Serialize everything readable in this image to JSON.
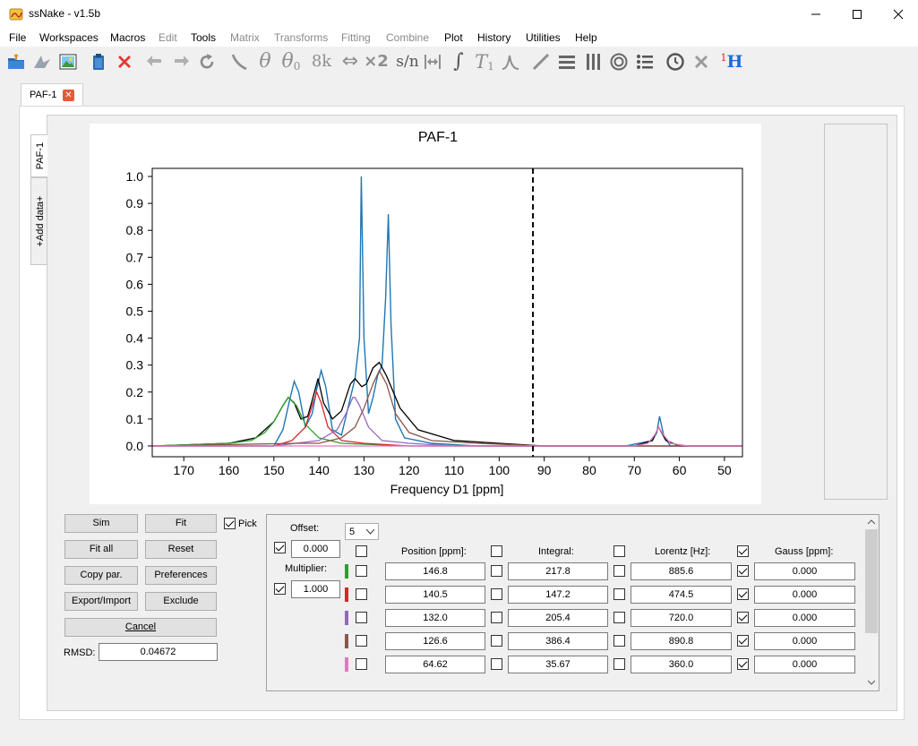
{
  "window": {
    "title": "ssNake - v1.5b",
    "minimize_label": "—",
    "maximize_label": "☐",
    "close_label": "✕"
  },
  "menu": [
    {
      "label": "File",
      "enabled": true
    },
    {
      "label": "Workspaces",
      "enabled": true
    },
    {
      "label": "Macros",
      "enabled": true
    },
    {
      "label": "Edit",
      "enabled": false
    },
    {
      "label": "Tools",
      "enabled": true
    },
    {
      "label": "Matrix",
      "enabled": false
    },
    {
      "label": "Transforms",
      "enabled": false
    },
    {
      "label": "Fitting",
      "enabled": false
    },
    {
      "label": "Combine",
      "enabled": false
    },
    {
      "label": "Plot",
      "enabled": true
    },
    {
      "label": "History",
      "enabled": true
    },
    {
      "label": "Utilities",
      "enabled": true
    },
    {
      "label": "Help",
      "enabled": true
    }
  ],
  "toolbar": {
    "icons": [
      "open-folder-icon",
      "matrix-icon",
      "image-icon",
      "clipboard-icon",
      "delete-icon",
      "undo-icon",
      "redo-icon",
      "reload-icon",
      "phase-line-icon",
      "theta-icon",
      "theta-zero-icon",
      "eightk-icon",
      "swap-arrows-icon",
      "times-two-icon",
      "sn-icon",
      "width-icon",
      "integral-icon",
      "t1-icon",
      "lambda-icon",
      "diagonal-icon",
      "rows-icon",
      "columns-icon",
      "circles-icon",
      "list-icon",
      "clock-icon",
      "x-gray-icon",
      "proton-icon"
    ],
    "text_labels": {
      "theta": "θ",
      "theta0": "θ",
      "theta0_sub": "0",
      "eightk": "8k",
      "swap": "⇔",
      "times2": "×2",
      "sn": "s/n",
      "integral": "∫",
      "t1": "T",
      "t1_sub": "1",
      "lambda": "⋏",
      "proton_sup": "1",
      "proton": "H"
    }
  },
  "tabs": [
    {
      "label": "PAF-1",
      "close": "✕"
    }
  ],
  "side_tabs": {
    "active": "PAF-1",
    "add": "+Add data+"
  },
  "chart_data": {
    "type": "line",
    "title": "PAF-1",
    "xlabel": "Frequency D1 [ppm]",
    "ylabel": "",
    "xlim": [
      177,
      46
    ],
    "ylim": [
      -0.04,
      1.03
    ],
    "x_ticks": [
      170,
      160,
      150,
      140,
      130,
      120,
      110,
      100,
      90,
      80,
      70,
      60,
      50
    ],
    "y_ticks": [
      0.0,
      0.1,
      0.2,
      0.3,
      0.4,
      0.5,
      0.6,
      0.7,
      0.8,
      0.9,
      1.0
    ],
    "y_tick_labels": [
      "0.0",
      "0.1",
      "0.2",
      "0.3",
      "0.4",
      "0.5",
      "0.6",
      "0.7",
      "0.8",
      "0.9",
      "1.0"
    ],
    "cursor_line_x": 92.5,
    "grid": false,
    "series": [
      {
        "color": "#1f77b4",
        "points": [
          [
            177,
            0.0
          ],
          [
            150,
            0.0
          ],
          [
            148,
            0.06
          ],
          [
            146.5,
            0.17
          ],
          [
            145.5,
            0.24
          ],
          [
            144.5,
            0.2
          ],
          [
            143,
            0.07
          ],
          [
            141.5,
            0.12
          ],
          [
            140.5,
            0.21
          ],
          [
            139.5,
            0.28
          ],
          [
            138.5,
            0.22
          ],
          [
            137,
            0.06
          ],
          [
            135,
            0.04
          ],
          [
            133,
            0.18
          ],
          [
            132,
            0.25
          ],
          [
            131,
            0.4
          ],
          [
            130.6,
            1.0
          ],
          [
            130,
            0.4
          ],
          [
            129,
            0.12
          ],
          [
            128,
            0.18
          ],
          [
            127,
            0.26
          ],
          [
            126,
            0.3
          ],
          [
            125.2,
            0.55
          ],
          [
            124.6,
            0.86
          ],
          [
            124,
            0.45
          ],
          [
            123,
            0.1
          ],
          [
            121,
            0.03
          ],
          [
            115,
            0.01
          ],
          [
            105,
            0.0
          ],
          [
            95,
            0.0
          ],
          [
            72,
            0.0
          ],
          [
            66,
            0.02
          ],
          [
            65,
            0.05
          ],
          [
            64.4,
            0.11
          ],
          [
            63.5,
            0.04
          ],
          [
            62,
            0.0
          ],
          [
            46,
            0.0
          ]
        ]
      },
      {
        "color": "#000000",
        "points": [
          [
            177,
            0.0
          ],
          [
            160,
            0.01
          ],
          [
            154,
            0.03
          ],
          [
            150,
            0.09
          ],
          [
            148,
            0.15
          ],
          [
            146.8,
            0.18
          ],
          [
            145.5,
            0.16
          ],
          [
            144,
            0.1
          ],
          [
            142.5,
            0.11
          ],
          [
            141,
            0.2
          ],
          [
            140.2,
            0.25
          ],
          [
            139,
            0.16
          ],
          [
            137,
            0.1
          ],
          [
            135,
            0.13
          ],
          [
            133,
            0.23
          ],
          [
            132,
            0.25
          ],
          [
            130.5,
            0.22
          ],
          [
            129.5,
            0.23
          ],
          [
            128,
            0.29
          ],
          [
            126.6,
            0.31
          ],
          [
            125,
            0.26
          ],
          [
            122,
            0.14
          ],
          [
            118,
            0.06
          ],
          [
            110,
            0.02
          ],
          [
            100,
            0.01
          ],
          [
            90,
            0.0
          ],
          [
            70,
            0.0
          ],
          [
            66,
            0.02
          ],
          [
            64.6,
            0.07
          ],
          [
            63,
            0.02
          ],
          [
            60,
            0.0
          ],
          [
            46,
            0.0
          ]
        ]
      },
      {
        "color": "#2ca02c",
        "points": [
          [
            177,
            0.0
          ],
          [
            160,
            0.01
          ],
          [
            155,
            0.02
          ],
          [
            152,
            0.05
          ],
          [
            150,
            0.09
          ],
          [
            148,
            0.15
          ],
          [
            146.8,
            0.18
          ],
          [
            145,
            0.15
          ],
          [
            143,
            0.08
          ],
          [
            140,
            0.03
          ],
          [
            135,
            0.01
          ],
          [
            120,
            0.0
          ],
          [
            46,
            0.0
          ]
        ]
      },
      {
        "color": "#d62728",
        "points": [
          [
            177,
            0.0
          ],
          [
            150,
            0.0
          ],
          [
            146,
            0.02
          ],
          [
            143,
            0.07
          ],
          [
            141.5,
            0.15
          ],
          [
            140.5,
            0.2
          ],
          [
            139.5,
            0.16
          ],
          [
            138,
            0.07
          ],
          [
            135,
            0.02
          ],
          [
            130,
            0.01
          ],
          [
            120,
            0.0
          ],
          [
            46,
            0.0
          ]
        ]
      },
      {
        "color": "#9467bd",
        "points": [
          [
            177,
            0.0
          ],
          [
            150,
            0.0
          ],
          [
            140,
            0.02
          ],
          [
            136,
            0.06
          ],
          [
            134,
            0.12
          ],
          [
            132.5,
            0.18
          ],
          [
            132,
            0.18
          ],
          [
            131,
            0.15
          ],
          [
            129,
            0.07
          ],
          [
            126,
            0.02
          ],
          [
            120,
            0.01
          ],
          [
            110,
            0.0
          ],
          [
            46,
            0.0
          ]
        ]
      },
      {
        "color": "#8c564b",
        "points": [
          [
            177,
            0.0
          ],
          [
            145,
            0.01
          ],
          [
            140,
            0.01
          ],
          [
            135,
            0.03
          ],
          [
            132,
            0.07
          ],
          [
            130,
            0.14
          ],
          [
            128,
            0.23
          ],
          [
            126.6,
            0.28
          ],
          [
            125,
            0.23
          ],
          [
            123,
            0.12
          ],
          [
            120,
            0.05
          ],
          [
            115,
            0.02
          ],
          [
            105,
            0.01
          ],
          [
            90,
            0.0
          ],
          [
            46,
            0.0
          ]
        ]
      },
      {
        "color": "#e377c2",
        "points": [
          [
            177,
            0.0
          ],
          [
            70,
            0.0
          ],
          [
            67,
            0.01
          ],
          [
            65.5,
            0.04
          ],
          [
            64.6,
            0.07
          ],
          [
            63.5,
            0.04
          ],
          [
            62,
            0.01
          ],
          [
            58,
            0.0
          ],
          [
            46,
            0.0
          ]
        ]
      }
    ]
  },
  "controls": {
    "sim": "Sim",
    "fit": "Fit",
    "pick_label": "Pick",
    "pick_checked": true,
    "fit_all": "Fit all",
    "reset": "Reset",
    "copy_par": "Copy par.",
    "preferences": "Preferences",
    "export_import": "Export/Import",
    "exclude": "Exclude",
    "cancel": "Cancel",
    "rmsd_label": "RMSD:",
    "rmsd_value": "0.04672"
  },
  "params": {
    "offset_label": "Offset:",
    "offset_value": "0.000",
    "offset_checked": true,
    "multiplier_label": "Multiplier:",
    "multiplier_value": "1.000",
    "multiplier_checked": true,
    "num_peaks": "5",
    "headers": {
      "position": "Position [ppm]:",
      "integral": "Integral:",
      "lorentz": "Lorentz [Hz]:",
      "gauss": "Gauss [ppm]:"
    },
    "header_checks": {
      "position": false,
      "integral": false,
      "lorentz": false,
      "gauss": true
    },
    "rows": [
      {
        "color": "#2ca02c",
        "position": "146.8",
        "integral": "217.8",
        "lorentz": "885.6",
        "gauss": "0.000",
        "gauss_checked": true
      },
      {
        "color": "#d62728",
        "position": "140.5",
        "integral": "147.2",
        "lorentz": "474.5",
        "gauss": "0.000",
        "gauss_checked": true
      },
      {
        "color": "#9467bd",
        "position": "132.0",
        "integral": "205.4",
        "lorentz": "720.0",
        "gauss": "0.000",
        "gauss_checked": true
      },
      {
        "color": "#8c564b",
        "position": "126.6",
        "integral": "386.4",
        "lorentz": "890.8",
        "gauss": "0.000",
        "gauss_checked": true
      },
      {
        "color": "#e377c2",
        "position": "64.62",
        "integral": "35.67",
        "lorentz": "360.0",
        "gauss": "0.000",
        "gauss_checked": true
      }
    ]
  }
}
